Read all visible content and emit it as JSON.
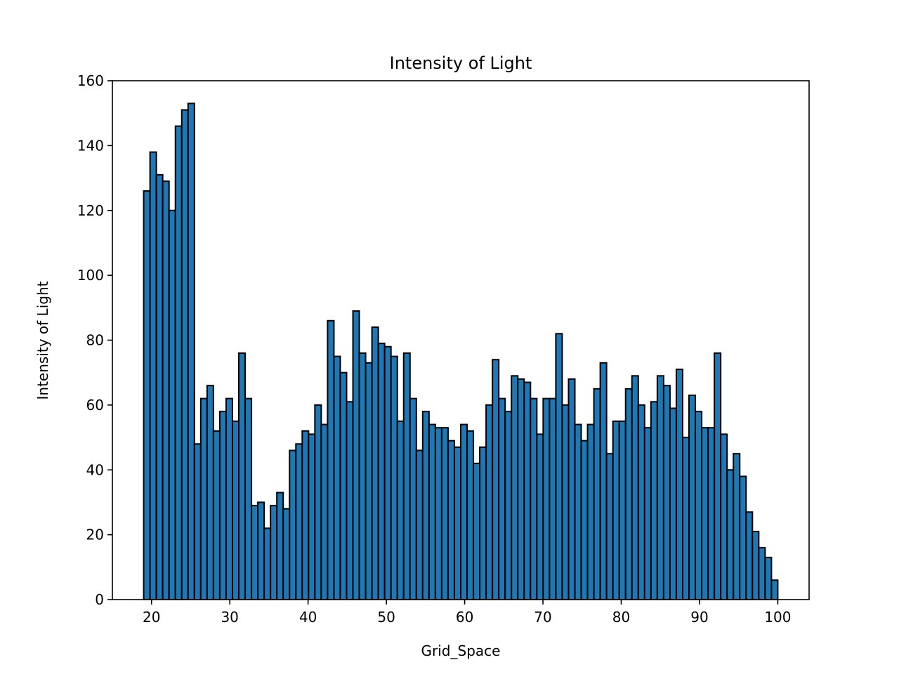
{
  "chart_data": {
    "type": "bar",
    "title": "Intensity of Light",
    "xlabel": "Grid_Space",
    "ylabel": "Intensity of Light",
    "bin_start": 19,
    "bin_width": 0.81,
    "values": [
      126,
      138,
      131,
      129,
      120,
      146,
      151,
      153,
      48,
      62,
      66,
      52,
      58,
      62,
      55,
      76,
      62,
      29,
      30,
      22,
      29,
      33,
      28,
      46,
      48,
      52,
      51,
      60,
      54,
      86,
      75,
      70,
      61,
      89,
      76,
      73,
      84,
      79,
      78,
      75,
      55,
      76,
      62,
      46,
      58,
      54,
      53,
      53,
      49,
      47,
      54,
      52,
      42,
      47,
      60,
      74,
      62,
      58,
      69,
      68,
      67,
      62,
      51,
      62,
      62,
      82,
      60,
      68,
      54,
      49,
      54,
      65,
      73,
      45,
      55,
      55,
      65,
      69,
      60,
      53,
      61,
      69,
      66,
      59,
      71,
      50,
      63,
      58,
      53,
      53,
      76,
      51,
      40,
      45,
      38,
      27,
      21,
      16,
      13,
      6
    ],
    "xlim": [
      15,
      104
    ],
    "ylim": [
      0,
      160
    ],
    "xticks": [
      20,
      30,
      40,
      50,
      60,
      70,
      80,
      90,
      100
    ],
    "yticks": [
      0,
      20,
      40,
      60,
      80,
      100,
      120,
      140,
      160
    ],
    "bar_color": "#1f77b4",
    "edge_color": "#000000",
    "grid": false,
    "legend": "none"
  }
}
